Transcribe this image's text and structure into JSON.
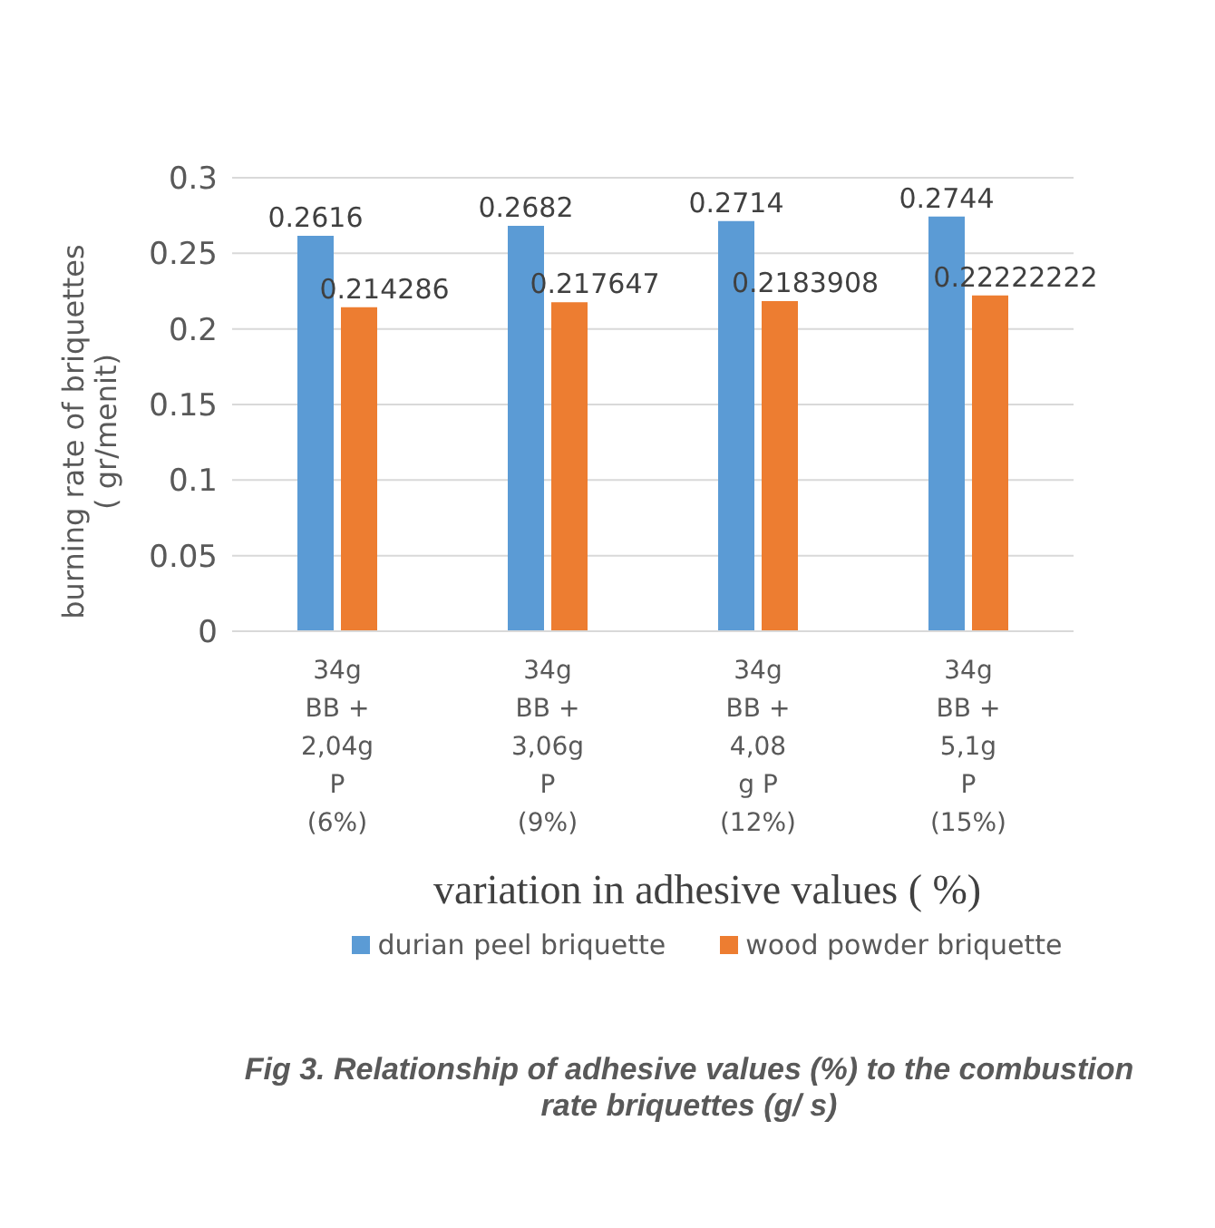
{
  "chart_data": {
    "type": "bar",
    "title": "Fig 3. Relationship of adhesive values  (%) to the combustion rate briquettes  (g/ s)",
    "xlabel": "variation in adhesive values ( %)",
    "ylabel": "burning rate of briquettes ( gr/menit)",
    "categories": [
      "34g BB + 2,04g P (6%)",
      "34g BB + 3,06g P (9%)",
      "34g BB + 4,08 g P (12%)",
      "34g BB + 5,1g P (15%)"
    ],
    "series": [
      {
        "name": "durian peel briquette",
        "color": "#5b9bd5",
        "values": [
          0.2616,
          0.2682,
          0.2714,
          0.2744
        ]
      },
      {
        "name": "wood powder briquette",
        "color": "#ed7d31",
        "values": [
          0.214286,
          0.217647,
          0.2183908,
          0.22222222
        ]
      }
    ],
    "ylim": [
      0,
      0.3
    ],
    "yticks": [
      0,
      0.05,
      0.1,
      0.15,
      0.2,
      0.25,
      0.3
    ],
    "grid": "y",
    "legend": "bottom",
    "data_labels": true
  }
}
